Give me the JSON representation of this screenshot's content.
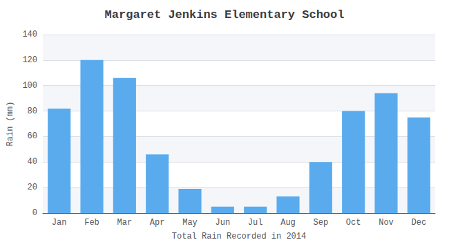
{
  "chart_data": {
    "type": "bar",
    "title": "Margaret Jenkins Elementary School",
    "xlabel": "Total Rain Recorded in 2014",
    "ylabel": "Rain (mm)",
    "categories": [
      "Jan",
      "Feb",
      "Mar",
      "Apr",
      "May",
      "Jun",
      "Jul",
      "Aug",
      "Sep",
      "Oct",
      "Nov",
      "Dec"
    ],
    "values": [
      82,
      120,
      106,
      46,
      19,
      5,
      5,
      13,
      40,
      80,
      94,
      75
    ],
    "color": "#5aabee",
    "ylim": [
      0,
      140
    ],
    "yticks": [
      0,
      20,
      40,
      60,
      80,
      100,
      120,
      140
    ],
    "grid": true
  }
}
